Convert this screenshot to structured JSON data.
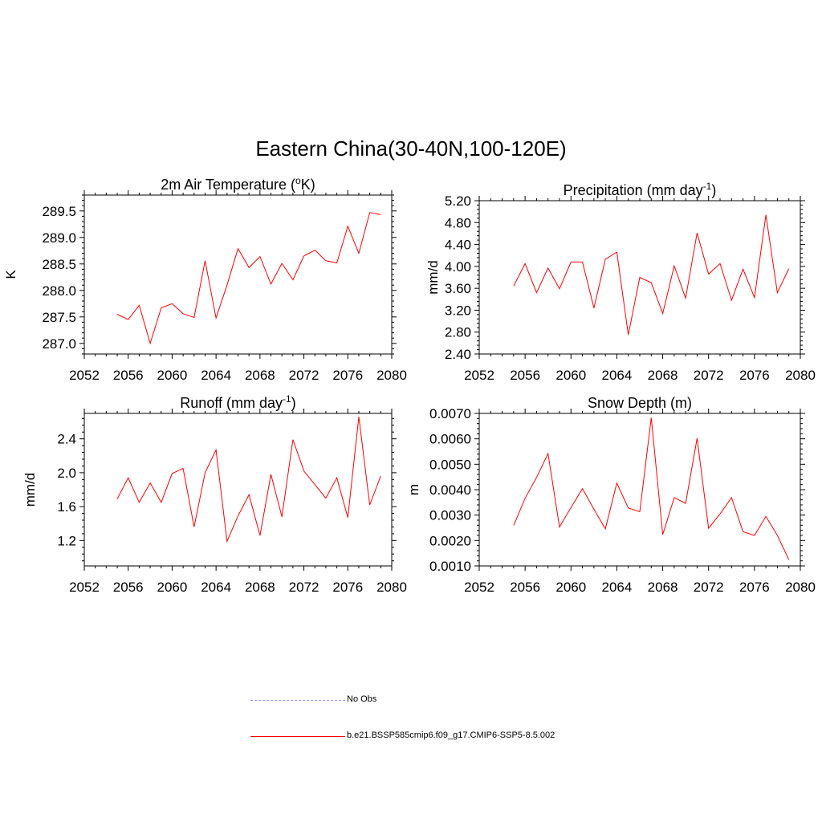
{
  "figure": {
    "title": "Eastern China(30-40N,100-120E)"
  },
  "legend": [
    {
      "label": "No Obs",
      "color": "#9999ee",
      "style": "dashed"
    },
    {
      "label": "b.e21.BSSP585cmip6.f09_g17.CMIP6-SSP5-8.5.002",
      "color": "#ff0000",
      "style": "solid"
    }
  ],
  "chart_data": [
    {
      "type": "line",
      "title": "2m Air Temperature (oK)",
      "title_parts": {
        "main": "2m Air Temperature (",
        "sup": "o",
        "end": "K)"
      },
      "xlabel": "",
      "ylabel": "K",
      "xlim": [
        2052,
        2080
      ],
      "ylim": [
        286.8,
        289.8
      ],
      "xticks": [
        "2052",
        "2056",
        "2060",
        "2064",
        "2068",
        "2072",
        "2076",
        "2080"
      ],
      "yticks": [
        "287.0",
        "287.5",
        "288.0",
        "288.5",
        "289.0",
        "289.5"
      ],
      "color": "#ff0000",
      "x": [
        2055,
        2056,
        2057,
        2058,
        2059,
        2060,
        2061,
        2062,
        2063,
        2064,
        2065,
        2066,
        2067,
        2068,
        2069,
        2070,
        2071,
        2072,
        2073,
        2074,
        2075,
        2076,
        2077,
        2078,
        2079
      ],
      "y": [
        287.55,
        287.45,
        287.72,
        287.0,
        287.67,
        287.75,
        287.56,
        287.49,
        288.56,
        287.48,
        288.1,
        288.79,
        288.43,
        288.64,
        288.12,
        288.51,
        288.2,
        288.65,
        288.76,
        288.56,
        288.52,
        289.21,
        288.7,
        289.47,
        289.43
      ]
    },
    {
      "type": "line",
      "title": "Precipitation (mm day-1)",
      "title_parts": {
        "main": "Precipitation (mm day",
        "sup": "-1",
        "end": ")"
      },
      "xlabel": "",
      "ylabel": "mm/d",
      "xlim": [
        2052,
        2080
      ],
      "ylim": [
        2.4,
        5.2
      ],
      "xticks": [
        "2052",
        "2056",
        "2060",
        "2064",
        "2068",
        "2072",
        "2076",
        "2080"
      ],
      "yticks": [
        "2.40",
        "2.80",
        "3.20",
        "3.60",
        "4.00",
        "4.40",
        "4.80",
        "5.20"
      ],
      "color": "#ff0000",
      "x": [
        2055,
        2056,
        2057,
        2058,
        2059,
        2060,
        2061,
        2062,
        2063,
        2064,
        2065,
        2066,
        2067,
        2068,
        2069,
        2070,
        2071,
        2072,
        2073,
        2074,
        2075,
        2076,
        2077,
        2078,
        2079
      ],
      "y": [
        3.64,
        4.05,
        3.52,
        3.97,
        3.59,
        4.08,
        4.08,
        3.24,
        4.13,
        4.26,
        2.75,
        3.8,
        3.7,
        3.14,
        4.01,
        3.42,
        4.61,
        3.86,
        4.05,
        3.38,
        3.95,
        3.43,
        4.94,
        3.52,
        3.96
      ]
    },
    {
      "type": "line",
      "title": "Runoff (mm day-1)",
      "title_parts": {
        "main": "Runoff (mm day",
        "sup": "-1",
        "end": ")"
      },
      "xlabel": "",
      "ylabel": "mm/d",
      "xlim": [
        2052,
        2080
      ],
      "ylim": [
        0.9,
        2.7
      ],
      "xticks": [
        "2052",
        "2056",
        "2060",
        "2064",
        "2068",
        "2072",
        "2076",
        "2080"
      ],
      "yticks": [
        "1.2",
        "1.6",
        "2.0",
        "2.4"
      ],
      "color": "#ff0000",
      "x": [
        2055,
        2056,
        2057,
        2058,
        2059,
        2060,
        2061,
        2062,
        2063,
        2064,
        2065,
        2066,
        2067,
        2068,
        2069,
        2070,
        2071,
        2072,
        2073,
        2074,
        2075,
        2076,
        2077,
        2078,
        2079
      ],
      "y": [
        1.69,
        1.94,
        1.65,
        1.88,
        1.65,
        1.99,
        2.05,
        1.36,
        2.0,
        2.27,
        1.19,
        1.49,
        1.74,
        1.26,
        1.98,
        1.48,
        2.39,
        2.02,
        1.86,
        1.7,
        1.94,
        1.47,
        2.66,
        1.62,
        1.96
      ]
    },
    {
      "type": "line",
      "title": "Snow Depth (m)",
      "title_parts": {
        "main": "Snow Depth (m)",
        "sup": "",
        "end": ""
      },
      "xlabel": "",
      "ylabel": "m",
      "xlim": [
        2052,
        2080
      ],
      "ylim": [
        0.001,
        0.007
      ],
      "xticks": [
        "2052",
        "2056",
        "2060",
        "2064",
        "2068",
        "2072",
        "2076",
        "2080"
      ],
      "yticks": [
        "0.0010",
        "0.0020",
        "0.0030",
        "0.0040",
        "0.0050",
        "0.0060",
        "0.0070"
      ],
      "color": "#ff0000",
      "x": [
        2055,
        2056,
        2057,
        2058,
        2059,
        2060,
        2061,
        2062,
        2063,
        2064,
        2065,
        2066,
        2067,
        2068,
        2069,
        2070,
        2071,
        2072,
        2073,
        2074,
        2075,
        2076,
        2077,
        2078,
        2079
      ],
      "y": [
        0.00259,
        0.00366,
        0.00448,
        0.00542,
        0.00253,
        0.0033,
        0.00404,
        0.00323,
        0.00246,
        0.00426,
        0.00328,
        0.00313,
        0.00683,
        0.00223,
        0.00369,
        0.00346,
        0.00602,
        0.00248,
        0.00305,
        0.00369,
        0.00235,
        0.0022,
        0.00295,
        0.0022,
        0.00125
      ]
    }
  ]
}
